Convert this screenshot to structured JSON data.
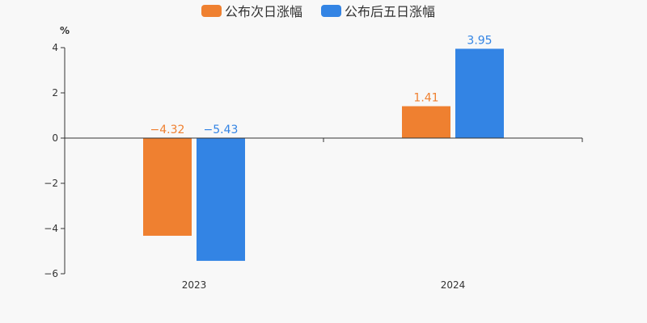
{
  "chart_data": {
    "type": "bar",
    "unit_label": "%",
    "categories": [
      "2023",
      "2024"
    ],
    "series": [
      {
        "name": "公布次日涨幅",
        "color": "#ef8030",
        "values": [
          -4.32,
          1.41
        ],
        "labels": [
          "−4.32",
          "1.41"
        ]
      },
      {
        "name": "公布后五日涨幅",
        "color": "#3384e4",
        "values": [
          -5.43,
          3.95
        ],
        "labels": [
          "−5.43",
          "3.95"
        ]
      }
    ],
    "ylim": [
      -6,
      4
    ],
    "yticks": [
      4,
      2,
      0,
      -2,
      -4,
      -6
    ],
    "ytick_labels": [
      "4",
      "2",
      "0",
      "−2",
      "−4",
      "−6"
    ],
    "legend_position": "top-center",
    "grid": false
  }
}
